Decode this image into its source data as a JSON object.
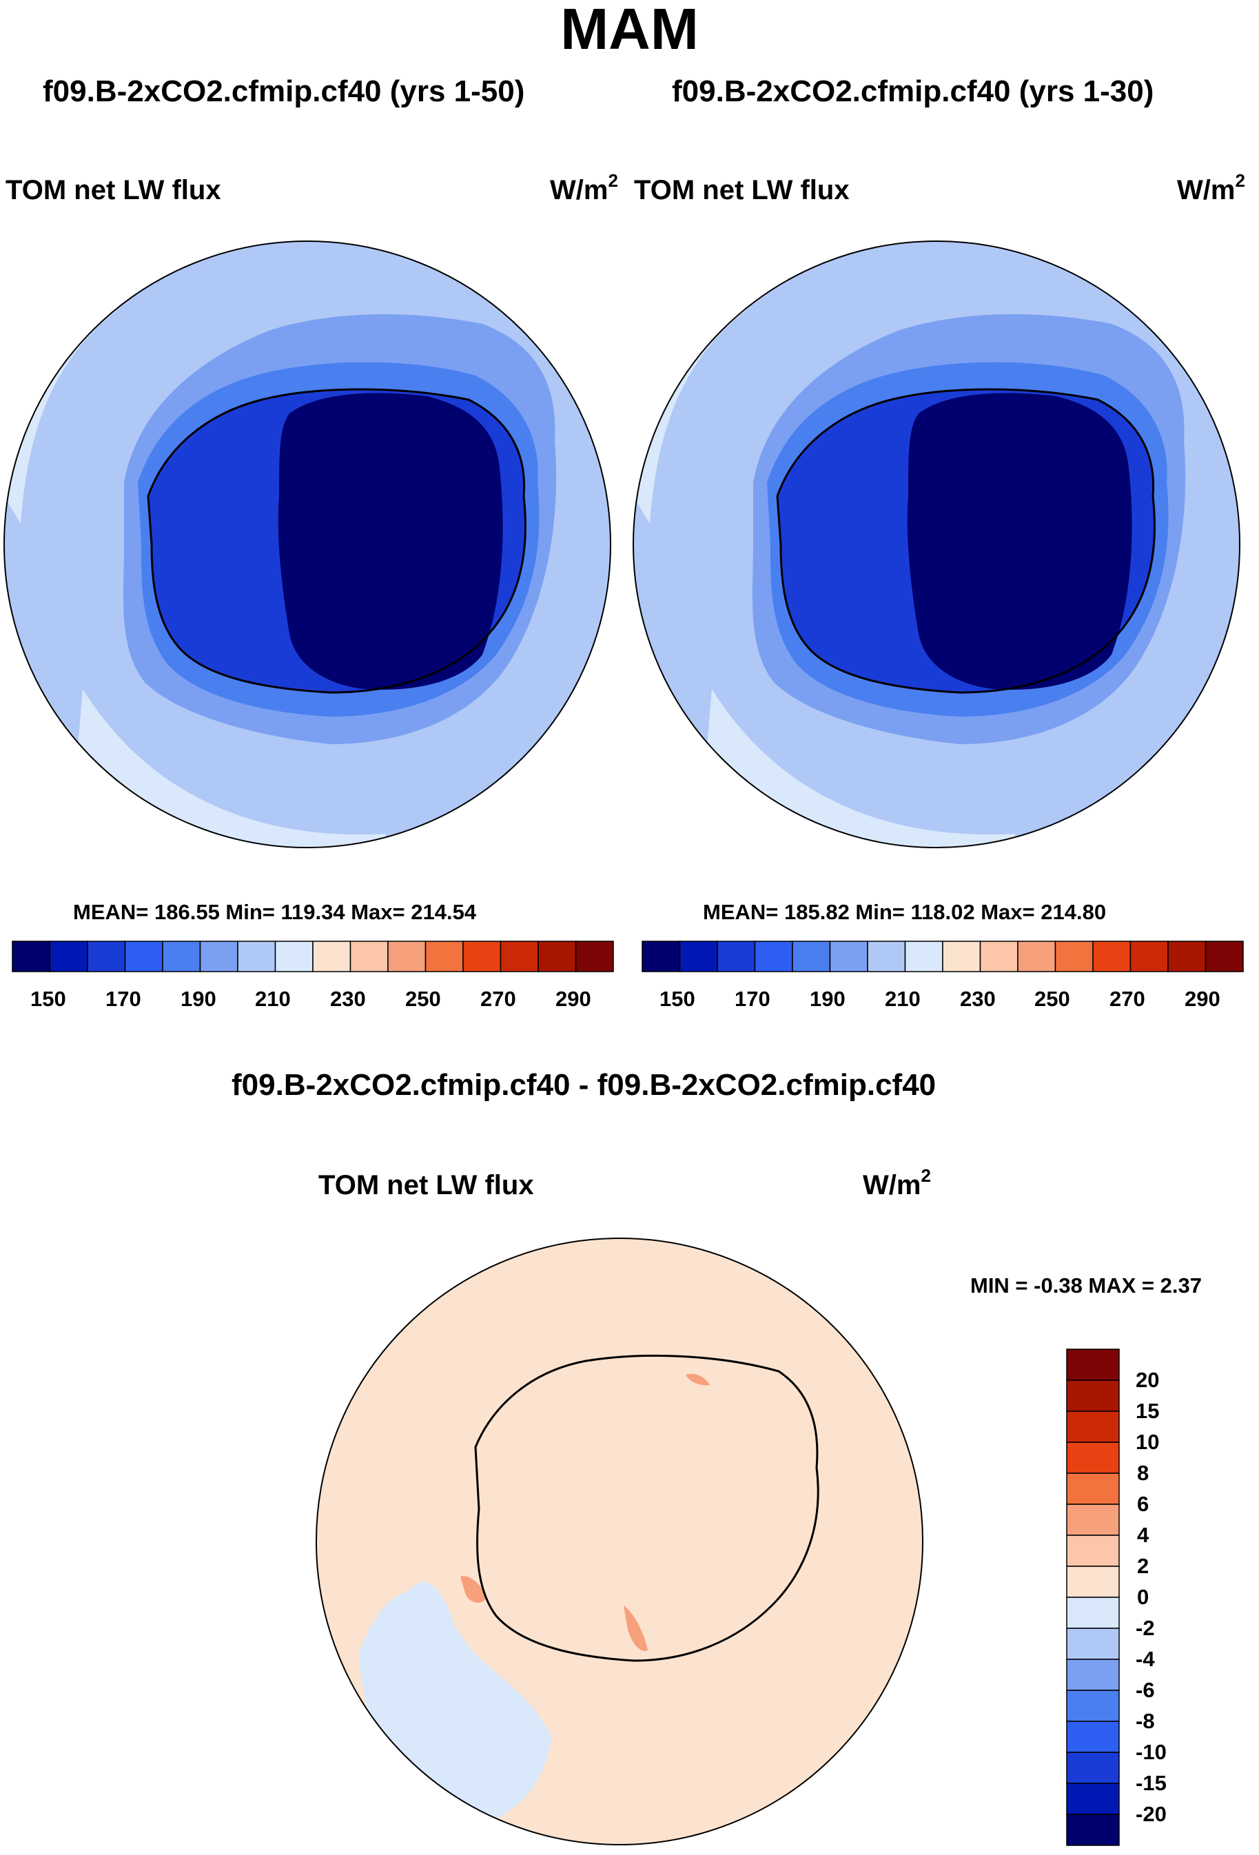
{
  "title": "MAM",
  "colors": {
    "palette": [
      "#00006e",
      "#0019b4",
      "#1a3cd6",
      "#2c5ff2",
      "#4a7ff0",
      "#7ba0f2",
      "#b0c8f6",
      "#d9e8fb",
      "#fce3cf",
      "#fbc6aa",
      "#f7a07c",
      "#f2733e",
      "#e84212",
      "#cc2a06",
      "#a81600",
      "#7d0404"
    ],
    "ocean_fill": "#b0c8f6",
    "ocean_mid": "#7ba0f2",
    "coast_near": "#4a7ff0",
    "shelf": "#1a3cd6",
    "ice": "#00006e",
    "diff_bg": "#fce3cf",
    "diff_neg": "#d9e8fb",
    "diff_pos": "#f7a07c"
  },
  "panels": [
    {
      "case_title": "f09.B-2xCO2.cfmip.cf40 (yrs 1-50)",
      "variable_label": "TOM net LW flux",
      "units": "W/m",
      "units_exp": "2",
      "stats": "MEAN= 186.55  Min= 119.34  Max= 214.54"
    },
    {
      "case_title": "f09.B-2xCO2.cfmip.cf40 (yrs 1-30)",
      "variable_label": "TOM net LW flux",
      "units": "W/m",
      "units_exp": "2",
      "stats": "MEAN= 185.82  Min= 118.02  Max= 214.80"
    }
  ],
  "diff_panel": {
    "title": "f09.B-2xCO2.cfmip.cf40 - f09.B-2xCO2.cfmip.cf40",
    "variable_label": "TOM net LW flux",
    "units": "W/m",
    "units_exp": "2",
    "minmax": "MIN =  -0.38 MAX =   2.37"
  },
  "chart_data": [
    {
      "type": "heatmap",
      "title": "f09.B-2xCO2.cfmip.cf40 (yrs 1-50)",
      "variable": "TOM net LW flux",
      "units": "W/m2",
      "projection": "south polar stereographic",
      "mean": 186.55,
      "min": 119.34,
      "max": 214.54,
      "colorbar_levels": [
        150,
        160,
        170,
        180,
        190,
        200,
        210,
        220,
        230,
        240,
        250,
        260,
        270,
        280,
        290
      ],
      "colorbar_labels": [
        "150",
        "170",
        "190",
        "210",
        "230",
        "250",
        "270",
        "290"
      ],
      "colorbar_orientation": "horizontal"
    },
    {
      "type": "heatmap",
      "title": "f09.B-2xCO2.cfmip.cf40 (yrs 1-30)",
      "variable": "TOM net LW flux",
      "units": "W/m2",
      "projection": "south polar stereographic",
      "mean": 185.82,
      "min": 118.02,
      "max": 214.8,
      "colorbar_levels": [
        150,
        160,
        170,
        180,
        190,
        200,
        210,
        220,
        230,
        240,
        250,
        260,
        270,
        280,
        290
      ],
      "colorbar_labels": [
        "150",
        "170",
        "190",
        "210",
        "230",
        "250",
        "270",
        "290"
      ],
      "colorbar_orientation": "horizontal"
    },
    {
      "type": "heatmap",
      "title": "f09.B-2xCO2.cfmip.cf40 - f09.B-2xCO2.cfmip.cf40",
      "variable": "TOM net LW flux",
      "units": "W/m2",
      "projection": "south polar stereographic",
      "min": -0.38,
      "max": 2.37,
      "colorbar_labels": [
        "20",
        "15",
        "10",
        "8",
        "6",
        "4",
        "2",
        "0",
        "-2",
        "-4",
        "-6",
        "-8",
        "-10",
        "-15",
        "-20"
      ],
      "colorbar_orientation": "vertical"
    }
  ]
}
